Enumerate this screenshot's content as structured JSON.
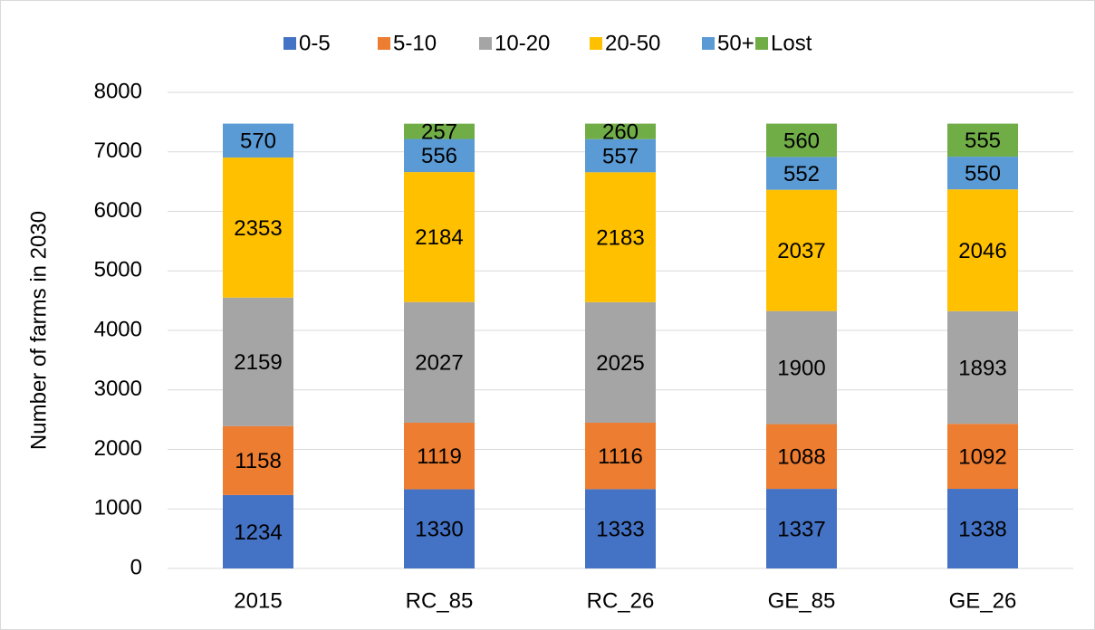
{
  "chart_data": {
    "type": "stacked-bar",
    "y_label": "Number of farms in 2030",
    "categories": [
      "2015",
      "RC_85",
      "RC_26",
      "GE_85",
      "GE_26"
    ],
    "series": [
      {
        "name": "0-5",
        "color": "#4472c4",
        "values": [
          1234,
          1330,
          1333,
          1337,
          1338
        ]
      },
      {
        "name": "5-10",
        "color": "#ed7d31",
        "values": [
          1158,
          1119,
          1116,
          1088,
          1092
        ]
      },
      {
        "name": "10-20",
        "color": "#a5a5a5",
        "values": [
          2159,
          2027,
          2025,
          1900,
          1893
        ]
      },
      {
        "name": "20-50",
        "color": "#ffc000",
        "values": [
          2353,
          2184,
          2183,
          2037,
          2046
        ]
      },
      {
        "name": "50+",
        "color": "#5b9bd5",
        "values": [
          570,
          556,
          557,
          552,
          550
        ]
      },
      {
        "name": "Lost",
        "color": "#70ad47",
        "values": [
          null,
          257,
          260,
          560,
          555
        ]
      }
    ],
    "ylim": [
      0,
      8000
    ],
    "yticks": [
      0,
      1000,
      2000,
      3000,
      4000,
      5000,
      6000,
      7000,
      8000
    ],
    "grid": true,
    "legend": "top"
  }
}
